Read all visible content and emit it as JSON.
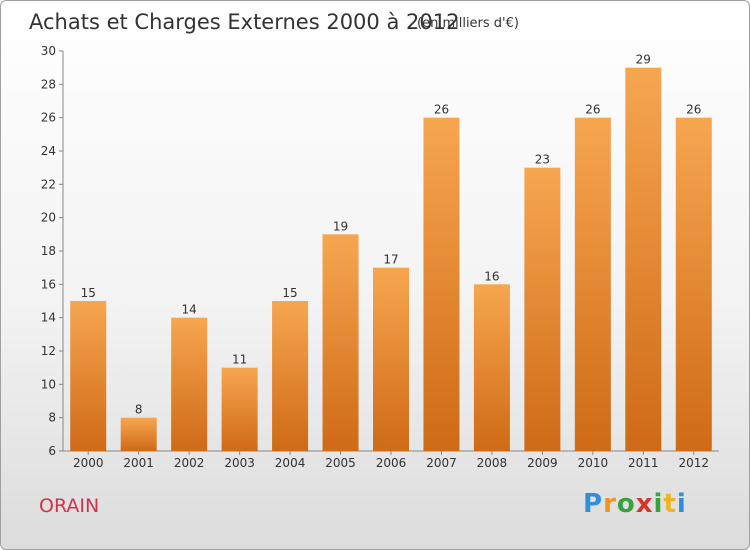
{
  "title": "Achats et Charges Externes 2000 à 2012",
  "subtitle": "(en milliers d'€)",
  "commune": "ORAIN",
  "brand": {
    "letters": [
      "P",
      "r",
      "o",
      "x",
      "i",
      "t",
      "i"
    ],
    "colors": [
      "#2f8fd8",
      "#f29420",
      "#3aa23c",
      "#d9332b",
      "#3aa23c",
      "#f2b320",
      "#2f8fd8"
    ]
  },
  "colors": {
    "bar_top": "#f7a650",
    "bar_bottom": "#cf6a16",
    "title": "#333333",
    "commune": "#d1334e"
  },
  "chart_data": {
    "type": "bar",
    "title": "Achats et Charges Externes 2000 à 2012",
    "subtitle": "(en milliers d'€)",
    "categories": [
      "2000",
      "2001",
      "2002",
      "2003",
      "2004",
      "2005",
      "2006",
      "2007",
      "2008",
      "2009",
      "2010",
      "2011",
      "2012"
    ],
    "values": [
      15,
      8,
      14,
      11,
      15,
      19,
      17,
      26,
      16,
      23,
      26,
      29,
      26
    ],
    "ylim": [
      6,
      30
    ],
    "yticks": [
      6,
      8,
      10,
      12,
      14,
      16,
      18,
      20,
      22,
      24,
      26,
      28,
      30
    ],
    "grid": false,
    "data_labels": true
  }
}
